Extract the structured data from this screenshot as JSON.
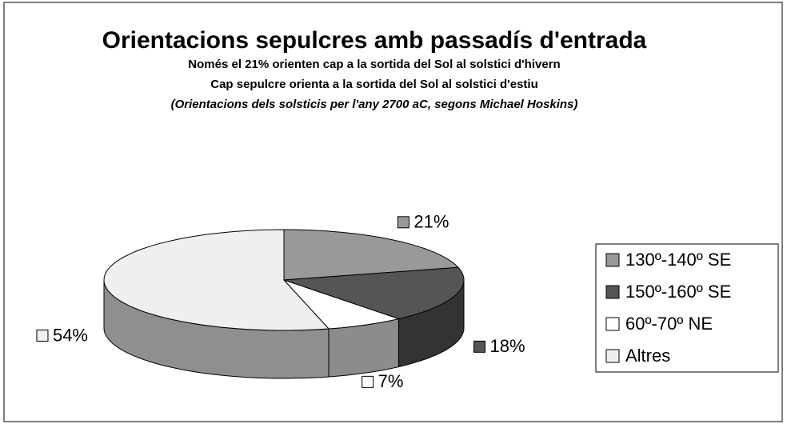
{
  "chart_data": {
    "type": "pie3d",
    "title": "Orientacions sepulcres amb passadís d'entrada",
    "subtitle": [
      "Només el 21% orienten cap a la sortida del Sol al solstici d'hivern",
      "Cap sepulcre orienta a la sortida del Sol al solstici d'estiu",
      "(Orientacions dels solsticis per l'any 2700 aC, segons Michael Hoskins)"
    ],
    "categories": [
      "130º-140º SE",
      "150º-160º SE",
      "60º-70º NE",
      "Altres"
    ],
    "values": [
      21,
      18,
      7,
      54
    ],
    "value_labels": [
      "21%",
      "18%",
      "7%",
      "54%"
    ],
    "colors": [
      "#999999",
      "#555555",
      "#ffffff",
      "#efefef"
    ],
    "legend": "right"
  }
}
